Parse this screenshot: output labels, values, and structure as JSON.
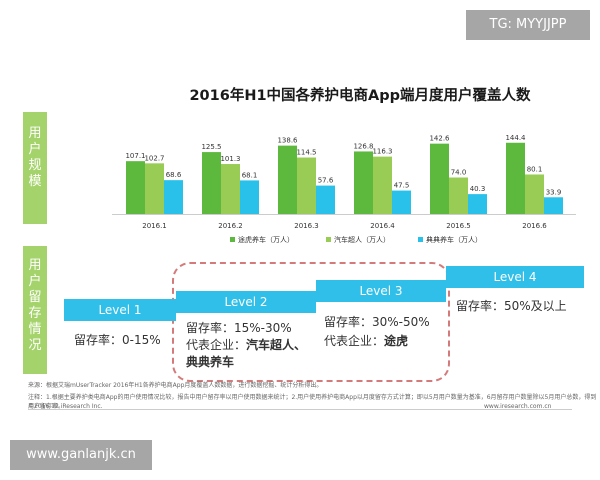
{
  "watermark_top": "TG: MYYJJPP",
  "watermark_bottom": "www.ganlanjk.cn",
  "side_labels": {
    "scale": [
      "用",
      "户",
      "规",
      "模"
    ],
    "retention": [
      "用",
      "户",
      "留",
      "存",
      "情",
      "况"
    ]
  },
  "colors": {
    "green_dark": "#5db93e",
    "green_light": "#98cc55",
    "blue": "#29c1ea",
    "level_blue": "#2fbfe8"
  },
  "chart_data": {
    "type": "bar",
    "title": "2016年H1中国各养护电商App端月度用户覆盖人数",
    "categories": [
      "2016.1",
      "2016.2",
      "2016.3",
      "2016.4",
      "2016.5",
      "2016.6"
    ],
    "series": [
      {
        "name": "途虎养车（万人）",
        "values": [
          107.1,
          125.5,
          138.6,
          126.8,
          142.6,
          144.4
        ]
      },
      {
        "name": "汽车超人（万人）",
        "values": [
          102.7,
          101.3,
          114.5,
          116.3,
          74.0,
          80.1
        ]
      },
      {
        "name": "典典养车（万人）",
        "values": [
          68.6,
          68.1,
          57.6,
          47.5,
          40.3,
          33.9
        ]
      }
    ],
    "value_labels": [
      [
        "107.1",
        "102.7",
        "68.6"
      ],
      [
        "125.5",
        "101.3",
        "68.1"
      ],
      [
        "138.6",
        "114.5",
        "57.6"
      ],
      [
        "126.8",
        "116.3",
        "47.5"
      ],
      [
        "142.6",
        "74.0",
        "40.3"
      ],
      [
        "144.4",
        "80.1",
        "33.9"
      ]
    ],
    "legend_position": "bottom"
  },
  "levels": [
    {
      "label": "Level 1",
      "lines": [
        "留存率：0-15%"
      ]
    },
    {
      "label": "Level 2",
      "lines": [
        "留存率：15%-30%",
        "代表企业：",
        "汽车超人、",
        "典典养车"
      ]
    },
    {
      "label": "Level 3",
      "lines": [
        "留存率：30%-50%",
        "代表企业：",
        "途虎"
      ]
    },
    {
      "label": "Level 4",
      "lines": [
        "留存率：50%及以上"
      ]
    }
  ],
  "footnotes": {
    "source": "来源：根据艾瑞mUserTracker 2016年H1各养护电商App月度覆盖人数数据，进行数据挖掘、统计分析得出。",
    "note": "注释：1.根据主要养护类电商App的用户使用情况比较，报告中用户留存率以用户使用数据来统计；2.用户使用养护电商App以月度留存方式计算；即以5月用户数量为基准，6月留存用户数量除以5月用户总数，得到用户留存率。",
    "copyright": "©2016.12 iResearch Inc.",
    "site": "www.iresearch.com.cn"
  }
}
